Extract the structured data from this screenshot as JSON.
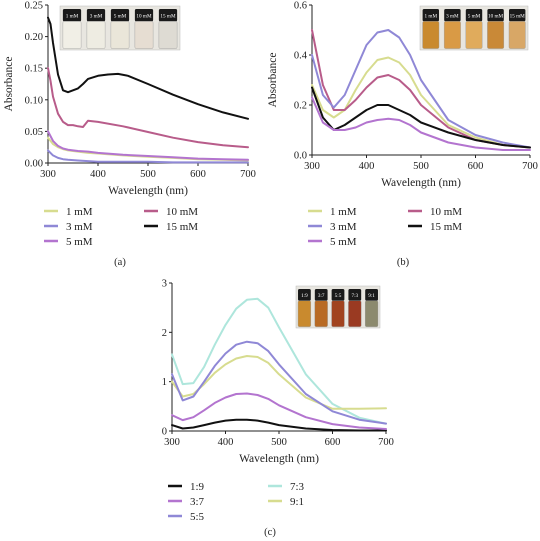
{
  "panels": [
    {
      "id": "a",
      "caption": "(a)",
      "chart_data": {
        "type": "line",
        "xlabel": "Wavelength (nm)",
        "ylabel": "Absorbance",
        "xlim": [
          300,
          700
        ],
        "ylim": [
          0,
          0.25
        ],
        "xticks": [
          300,
          400,
          500,
          600,
          700
        ],
        "yticks": [
          0.0,
          0.05,
          0.1,
          0.15,
          0.2,
          0.25
        ],
        "ytick_labels": [
          "0.00",
          "0.05",
          "0.10",
          "0.15",
          "0.20",
          "0.25"
        ],
        "inset_labels": [
          "1 mM",
          "3 mM",
          "5 mM",
          "10 mM",
          "15 mM"
        ],
        "series": [
          {
            "name": "1 mM",
            "color": "#d7dc8f",
            "x": [
              300,
              310,
              320,
              330,
              340,
              360,
              380,
              400,
              450,
              500,
              550,
              600,
              650,
              700
            ],
            "y": [
              0.04,
              0.03,
              0.025,
              0.022,
              0.02,
              0.018,
              0.016,
              0.015,
              0.012,
              0.01,
              0.008,
              0.006,
              0.005,
              0.004
            ]
          },
          {
            "name": "10 mM",
            "color": "#b85c8a",
            "x": [
              300,
              305,
              310,
              320,
              330,
              340,
              350,
              360,
              370,
              380,
              400,
              450,
              500,
              550,
              600,
              650,
              700
            ],
            "y": [
              0.15,
              0.13,
              0.105,
              0.078,
              0.065,
              0.06,
              0.06,
              0.058,
              0.057,
              0.067,
              0.065,
              0.058,
              0.049,
              0.04,
              0.033,
              0.028,
              0.025
            ]
          },
          {
            "name": "3 mM",
            "color": "#8f88d6",
            "x": [
              300,
              310,
              320,
              330,
              340,
              360,
              380,
              400,
              450,
              500,
              550,
              600,
              650,
              700
            ],
            "y": [
              0.02,
              0.012,
              0.008,
              0.006,
              0.005,
              0.004,
              0.003,
              0.002,
              0.002,
              0.002,
              0.001,
              0.001,
              0.001,
              0.001
            ]
          },
          {
            "name": "15 mM",
            "color": "#111111",
            "x": [
              300,
              305,
              310,
              320,
              330,
              340,
              350,
              360,
              370,
              380,
              400,
              420,
              440,
              460,
              500,
              550,
              600,
              650,
              700
            ],
            "y": [
              0.23,
              0.22,
              0.19,
              0.14,
              0.115,
              0.112,
              0.115,
              0.118,
              0.125,
              0.133,
              0.138,
              0.14,
              0.141,
              0.138,
              0.125,
              0.108,
              0.093,
              0.08,
              0.07
            ]
          },
          {
            "name": "5 mM",
            "color": "#b374cf",
            "x": [
              300,
              310,
              320,
              330,
              340,
              360,
              380,
              400,
              450,
              500,
              550,
              600,
              650,
              700
            ],
            "y": [
              0.05,
              0.035,
              0.027,
              0.023,
              0.021,
              0.019,
              0.018,
              0.016,
              0.013,
              0.011,
              0.009,
              0.007,
              0.006,
              0.005
            ]
          }
        ]
      }
    },
    {
      "id": "b",
      "caption": "(b)",
      "chart_data": {
        "type": "line",
        "xlabel": "Wavelength (nm)",
        "ylabel": "Absorbance",
        "xlim": [
          300,
          700
        ],
        "ylim": [
          0,
          0.6
        ],
        "xticks": [
          300,
          400,
          500,
          600,
          700
        ],
        "yticks": [
          0.0,
          0.2,
          0.4,
          0.6
        ],
        "ytick_labels": [
          "0.0",
          "0.2",
          "0.4",
          "0.6"
        ],
        "inset_labels": [
          "1 mM",
          "3 mM",
          "5 mM",
          "10 mM",
          "15 mM"
        ],
        "series": [
          {
            "name": "1 mM",
            "color": "#d7dc8f",
            "x": [
              300,
              320,
              340,
              360,
              380,
              400,
              420,
              440,
              460,
              480,
              500,
              550,
              600,
              650,
              700
            ],
            "y": [
              0.28,
              0.18,
              0.15,
              0.18,
              0.26,
              0.33,
              0.38,
              0.39,
              0.37,
              0.32,
              0.24,
              0.12,
              0.07,
              0.04,
              0.03
            ]
          },
          {
            "name": "10 mM",
            "color": "#b85c8a",
            "x": [
              300,
              320,
              340,
              360,
              380,
              400,
              420,
              440,
              460,
              480,
              500,
              550,
              600,
              650,
              700
            ],
            "y": [
              0.5,
              0.28,
              0.18,
              0.18,
              0.22,
              0.27,
              0.31,
              0.32,
              0.3,
              0.26,
              0.2,
              0.11,
              0.06,
              0.04,
              0.03
            ]
          },
          {
            "name": "3 mM",
            "color": "#8f88d6",
            "x": [
              300,
              320,
              340,
              360,
              380,
              400,
              420,
              440,
              460,
              480,
              500,
              550,
              600,
              650,
              700
            ],
            "y": [
              0.4,
              0.24,
              0.19,
              0.24,
              0.34,
              0.44,
              0.49,
              0.5,
              0.47,
              0.4,
              0.3,
              0.14,
              0.08,
              0.05,
              0.03
            ]
          },
          {
            "name": "15 mM",
            "color": "#111111",
            "x": [
              300,
              320,
              340,
              360,
              380,
              400,
              420,
              440,
              460,
              480,
              500,
              550,
              600,
              650,
              700
            ],
            "y": [
              0.27,
              0.15,
              0.1,
              0.12,
              0.15,
              0.18,
              0.2,
              0.2,
              0.18,
              0.16,
              0.13,
              0.09,
              0.06,
              0.04,
              0.03
            ]
          },
          {
            "name": "5 mM",
            "color": "#b374cf",
            "x": [
              300,
              320,
              340,
              360,
              380,
              400,
              420,
              440,
              460,
              480,
              500,
              550,
              600,
              650,
              700
            ],
            "y": [
              0.23,
              0.13,
              0.1,
              0.1,
              0.11,
              0.13,
              0.14,
              0.145,
              0.14,
              0.12,
              0.09,
              0.05,
              0.03,
              0.02,
              0.02
            ]
          }
        ]
      }
    },
    {
      "id": "c",
      "caption": "(c)",
      "chart_data": {
        "type": "line",
        "xlabel": "Wavelength (nm)",
        "ylabel": "",
        "xlim": [
          300,
          700
        ],
        "ylim": [
          0,
          3
        ],
        "xticks": [
          300,
          400,
          500,
          600,
          700
        ],
        "yticks": [
          0,
          1,
          2,
          3
        ],
        "ytick_labels": [
          "0",
          "1",
          "2",
          "3"
        ],
        "inset_labels": [
          "1:9",
          "3:7",
          "5:5",
          "7:3",
          "9:1"
        ],
        "series": [
          {
            "name": "1:9",
            "color": "#111111",
            "x": [
              300,
              320,
              340,
              360,
              380,
              400,
              420,
              440,
              460,
              480,
              500,
              550,
              600,
              650,
              700
            ],
            "y": [
              0.12,
              0.05,
              0.07,
              0.12,
              0.17,
              0.21,
              0.23,
              0.23,
              0.21,
              0.17,
              0.12,
              0.05,
              0.02,
              0.01,
              0.01
            ]
          },
          {
            "name": "7:3",
            "color": "#aee6dc",
            "x": [
              300,
              320,
              340,
              360,
              380,
              400,
              420,
              440,
              460,
              480,
              500,
              550,
              600,
              650,
              700
            ],
            "y": [
              1.55,
              0.95,
              0.97,
              1.3,
              1.75,
              2.15,
              2.48,
              2.66,
              2.68,
              2.5,
              2.1,
              1.15,
              0.55,
              0.27,
              0.15
            ]
          },
          {
            "name": "3:7",
            "color": "#b374cf",
            "x": [
              300,
              320,
              340,
              360,
              380,
              400,
              420,
              440,
              460,
              480,
              500,
              550,
              600,
              650,
              700
            ],
            "y": [
              0.32,
              0.22,
              0.28,
              0.42,
              0.57,
              0.68,
              0.75,
              0.76,
              0.73,
              0.65,
              0.52,
              0.28,
              0.14,
              0.07,
              0.04
            ]
          },
          {
            "name": "9:1",
            "color": "#d7dc8f",
            "x": [
              300,
              320,
              340,
              360,
              380,
              400,
              420,
              440,
              460,
              480,
              500,
              550,
              600,
              650,
              700
            ],
            "y": [
              1.0,
              0.7,
              0.75,
              0.95,
              1.18,
              1.35,
              1.47,
              1.52,
              1.5,
              1.38,
              1.15,
              0.68,
              0.45,
              0.45,
              0.46
            ]
          },
          {
            "name": "5:5",
            "color": "#8f88d6",
            "x": [
              300,
              320,
              340,
              360,
              380,
              400,
              420,
              440,
              460,
              480,
              500,
              550,
              600,
              650,
              700
            ],
            "y": [
              1.15,
              0.62,
              0.7,
              1.0,
              1.32,
              1.57,
              1.75,
              1.81,
              1.78,
              1.62,
              1.35,
              0.75,
              0.4,
              0.23,
              0.15
            ]
          }
        ]
      }
    }
  ]
}
